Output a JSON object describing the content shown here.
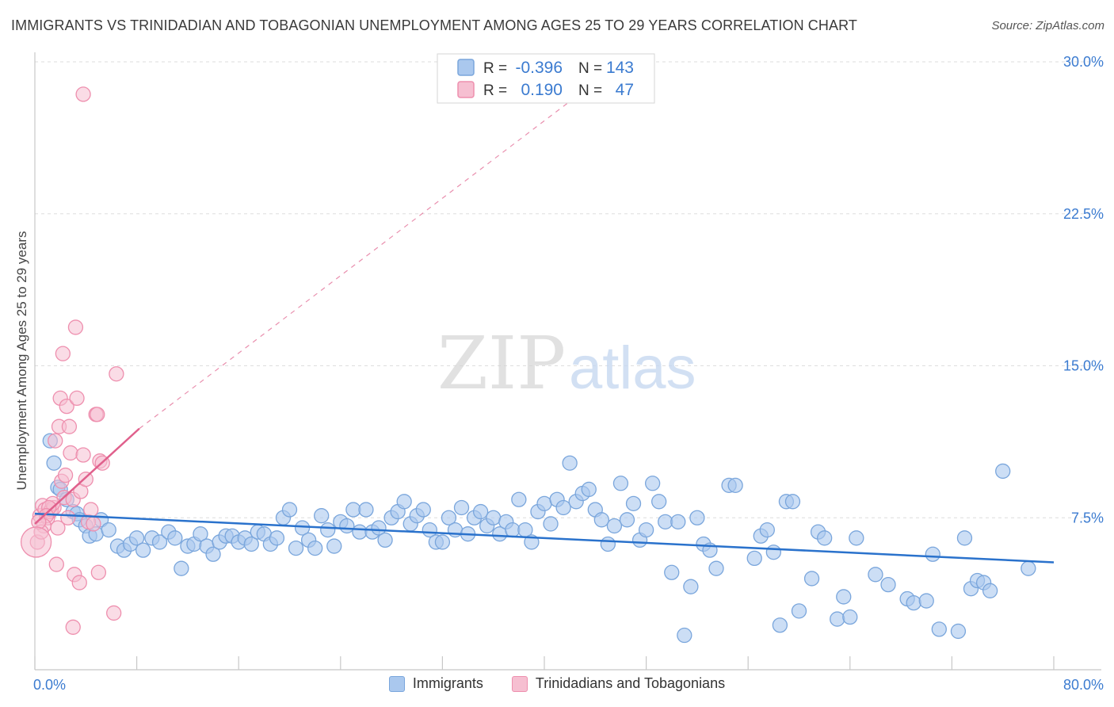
{
  "header": {
    "title": "IMMIGRANTS VS TRINIDADIAN AND TOBAGONIAN UNEMPLOYMENT AMONG AGES 25 TO 29 YEARS CORRELATION CHART",
    "source": "Source: ZipAtlas.com"
  },
  "watermark": {
    "zip": "ZIP",
    "atlas": "atlas"
  },
  "colors": {
    "blue_fill": "#aac8ee",
    "blue_stroke": "#7aa6dc",
    "blue_line": "#2a72cc",
    "pink_fill": "#f6bfd1",
    "pink_stroke": "#ee8fae",
    "pink_line": "#e0608c",
    "axis_text": "#3b7bd0",
    "grid": "#dddddd"
  },
  "legend_top": {
    "rows": [
      {
        "r_label": "R =",
        "r_value": "-0.396",
        "n_label": "N =",
        "n_value": "143",
        "series": "blue"
      },
      {
        "r_label": "R =",
        "r_value": "0.190",
        "n_label": "N =",
        "n_value": "47",
        "series": "pink"
      }
    ]
  },
  "legend_bottom": [
    {
      "label": "Immigrants",
      "series": "blue"
    },
    {
      "label": "Trinidadians and Tobagonians",
      "series": "pink"
    }
  ],
  "chart_data": {
    "type": "scatter",
    "title": "IMMIGRANTS VS TRINIDADIAN AND TOBAGONIAN UNEMPLOYMENT AMONG AGES 25 TO 29 YEARS CORRELATION CHART",
    "xlabel": "",
    "ylabel": "Unemployment Among Ages 25 to 29 years",
    "xlim": [
      0,
      80
    ],
    "ylim": [
      0,
      30
    ],
    "x_ticks": [
      "0.0%",
      "80.0%"
    ],
    "y_ticks": [
      {
        "value": 7.5,
        "label": "7.5%"
      },
      {
        "value": 15,
        "label": "15.0%"
      },
      {
        "value": 22.5,
        "label": "22.5%"
      },
      {
        "value": 30,
        "label": "30.0%"
      }
    ],
    "grid": true,
    "legend_position": "top-center",
    "series": [
      {
        "name": "Immigrants",
        "color": "blue",
        "trend": {
          "x": [
            0,
            80
          ],
          "y": [
            7.7,
            5.3
          ],
          "style": "solid"
        },
        "points": [
          [
            1.2,
            11.3
          ],
          [
            1.5,
            10.2
          ],
          [
            1.8,
            9.0
          ],
          [
            2.0,
            8.9
          ],
          [
            2.5,
            8.4
          ],
          [
            3.0,
            7.8
          ],
          [
            3.3,
            7.7
          ],
          [
            3.5,
            7.4
          ],
          [
            4.0,
            7.1
          ],
          [
            4.3,
            6.6
          ],
          [
            4.8,
            6.7
          ],
          [
            5.2,
            7.4
          ],
          [
            5.8,
            6.9
          ],
          [
            6.5,
            6.1
          ],
          [
            7.0,
            5.9
          ],
          [
            7.5,
            6.2
          ],
          [
            8.0,
            6.5
          ],
          [
            8.5,
            5.9
          ],
          [
            9.2,
            6.5
          ],
          [
            9.8,
            6.3
          ],
          [
            10.5,
            6.8
          ],
          [
            11.0,
            6.5
          ],
          [
            11.5,
            5.0
          ],
          [
            12.0,
            6.1
          ],
          [
            12.5,
            6.2
          ],
          [
            13.0,
            6.7
          ],
          [
            13.5,
            6.1
          ],
          [
            14.0,
            5.7
          ],
          [
            14.5,
            6.3
          ],
          [
            15.0,
            6.6
          ],
          [
            15.5,
            6.6
          ],
          [
            16.0,
            6.3
          ],
          [
            16.5,
            6.5
          ],
          [
            17.0,
            6.2
          ],
          [
            17.5,
            6.8
          ],
          [
            18.0,
            6.7
          ],
          [
            18.5,
            6.2
          ],
          [
            19.0,
            6.5
          ],
          [
            19.5,
            7.5
          ],
          [
            20.0,
            7.9
          ],
          [
            20.5,
            6.0
          ],
          [
            21.0,
            7.0
          ],
          [
            21.5,
            6.4
          ],
          [
            22.0,
            6.0
          ],
          [
            22.5,
            7.6
          ],
          [
            23.0,
            6.9
          ],
          [
            23.5,
            6.1
          ],
          [
            24.0,
            7.3
          ],
          [
            24.5,
            7.1
          ],
          [
            25.0,
            7.9
          ],
          [
            25.5,
            6.8
          ],
          [
            26.0,
            7.9
          ],
          [
            26.5,
            6.8
          ],
          [
            27.0,
            7.0
          ],
          [
            27.5,
            6.4
          ],
          [
            28.0,
            7.5
          ],
          [
            28.5,
            7.8
          ],
          [
            29.0,
            8.3
          ],
          [
            29.5,
            7.2
          ],
          [
            30.0,
            7.6
          ],
          [
            30.5,
            7.9
          ],
          [
            31.0,
            6.9
          ],
          [
            31.5,
            6.3
          ],
          [
            32.0,
            6.3
          ],
          [
            32.5,
            7.5
          ],
          [
            33.0,
            6.9
          ],
          [
            33.5,
            8.0
          ],
          [
            34.0,
            6.7
          ],
          [
            34.5,
            7.5
          ],
          [
            35.0,
            7.8
          ],
          [
            35.5,
            7.1
          ],
          [
            36.0,
            7.5
          ],
          [
            36.5,
            6.7
          ],
          [
            37.0,
            7.3
          ],
          [
            37.5,
            6.9
          ],
          [
            38.0,
            8.4
          ],
          [
            38.5,
            6.9
          ],
          [
            39.0,
            6.3
          ],
          [
            39.5,
            7.8
          ],
          [
            40.0,
            8.2
          ],
          [
            40.5,
            7.2
          ],
          [
            41.0,
            8.4
          ],
          [
            41.5,
            8.0
          ],
          [
            42.0,
            10.2
          ],
          [
            42.5,
            8.3
          ],
          [
            43.0,
            8.7
          ],
          [
            43.5,
            8.9
          ],
          [
            44.0,
            7.9
          ],
          [
            44.5,
            7.4
          ],
          [
            45.0,
            6.2
          ],
          [
            45.5,
            7.1
          ],
          [
            46.0,
            9.2
          ],
          [
            46.5,
            7.4
          ],
          [
            47.0,
            8.2
          ],
          [
            47.5,
            6.4
          ],
          [
            48.0,
            6.9
          ],
          [
            48.5,
            9.2
          ],
          [
            49.0,
            8.3
          ],
          [
            49.5,
            7.3
          ],
          [
            50.0,
            4.8
          ],
          [
            50.5,
            7.3
          ],
          [
            51.0,
            1.7
          ],
          [
            51.5,
            4.1
          ],
          [
            52.0,
            7.5
          ],
          [
            52.5,
            6.2
          ],
          [
            53.0,
            5.9
          ],
          [
            53.5,
            5.0
          ],
          [
            54.5,
            9.1
          ],
          [
            55.0,
            9.1
          ],
          [
            56.5,
            5.5
          ],
          [
            57.0,
            6.6
          ],
          [
            57.5,
            6.9
          ],
          [
            58.0,
            5.8
          ],
          [
            58.5,
            2.2
          ],
          [
            59.0,
            8.3
          ],
          [
            59.5,
            8.3
          ],
          [
            60.0,
            2.9
          ],
          [
            61.0,
            4.5
          ],
          [
            61.5,
            6.8
          ],
          [
            62.0,
            6.5
          ],
          [
            63.0,
            2.5
          ],
          [
            63.5,
            3.6
          ],
          [
            64.0,
            2.6
          ],
          [
            64.5,
            6.5
          ],
          [
            66.0,
            4.7
          ],
          [
            67.0,
            4.2
          ],
          [
            68.5,
            3.5
          ],
          [
            69.0,
            3.3
          ],
          [
            70.0,
            3.4
          ],
          [
            70.5,
            5.7
          ],
          [
            71.0,
            2.0
          ],
          [
            72.5,
            1.9
          ],
          [
            73.0,
            6.5
          ],
          [
            73.5,
            4.0
          ],
          [
            74.0,
            4.4
          ],
          [
            74.5,
            4.3
          ],
          [
            75.0,
            3.9
          ],
          [
            76.0,
            9.8
          ],
          [
            78.0,
            5.0
          ]
        ]
      },
      {
        "name": "Trinidadians and Tobagonians",
        "color": "pink",
        "trend": {
          "x": [
            0,
            8.2
          ],
          "y": [
            7.2,
            11.9
          ],
          "style": "solid",
          "extended": {
            "x": [
              8.2,
              44.0
            ],
            "y": [
              11.9,
              29.0
            ],
            "style": "dashed"
          }
        },
        "points": [
          [
            0.2,
            6.3
          ],
          [
            0.4,
            7.6
          ],
          [
            0.6,
            8.1
          ],
          [
            0.8,
            7.9
          ],
          [
            1.0,
            7.5
          ],
          [
            1.2,
            7.8
          ],
          [
            1.3,
            7.9
          ],
          [
            1.5,
            8.0
          ],
          [
            1.6,
            11.3
          ],
          [
            1.7,
            5.2
          ],
          [
            1.8,
            7.0
          ],
          [
            1.9,
            12.0
          ],
          [
            2.0,
            13.4
          ],
          [
            2.1,
            9.3
          ],
          [
            2.2,
            15.6
          ],
          [
            2.3,
            8.5
          ],
          [
            2.4,
            9.6
          ],
          [
            2.5,
            13.0
          ],
          [
            2.6,
            7.5
          ],
          [
            2.7,
            12.0
          ],
          [
            2.8,
            10.7
          ],
          [
            3.0,
            8.4
          ],
          [
            3.1,
            4.7
          ],
          [
            3.2,
            16.9
          ],
          [
            3.3,
            13.4
          ],
          [
            3.5,
            4.3
          ],
          [
            3.6,
            8.8
          ],
          [
            3.8,
            10.6
          ],
          [
            4.0,
            9.4
          ],
          [
            4.2,
            7.3
          ],
          [
            4.4,
            7.9
          ],
          [
            4.6,
            7.2
          ],
          [
            4.8,
            12.6
          ],
          [
            4.9,
            12.6
          ],
          [
            5.0,
            4.8
          ],
          [
            5.1,
            10.3
          ],
          [
            5.3,
            10.2
          ],
          [
            6.2,
            2.8
          ],
          [
            6.4,
            14.6
          ],
          [
            3.8,
            28.4
          ],
          [
            3.0,
            2.1
          ],
          [
            1.4,
            8.2
          ],
          [
            1.1,
            8.0
          ],
          [
            0.9,
            7.6
          ],
          [
            0.7,
            7.1
          ],
          [
            0.5,
            6.8
          ],
          [
            0.3,
            7.3
          ]
        ]
      }
    ]
  }
}
